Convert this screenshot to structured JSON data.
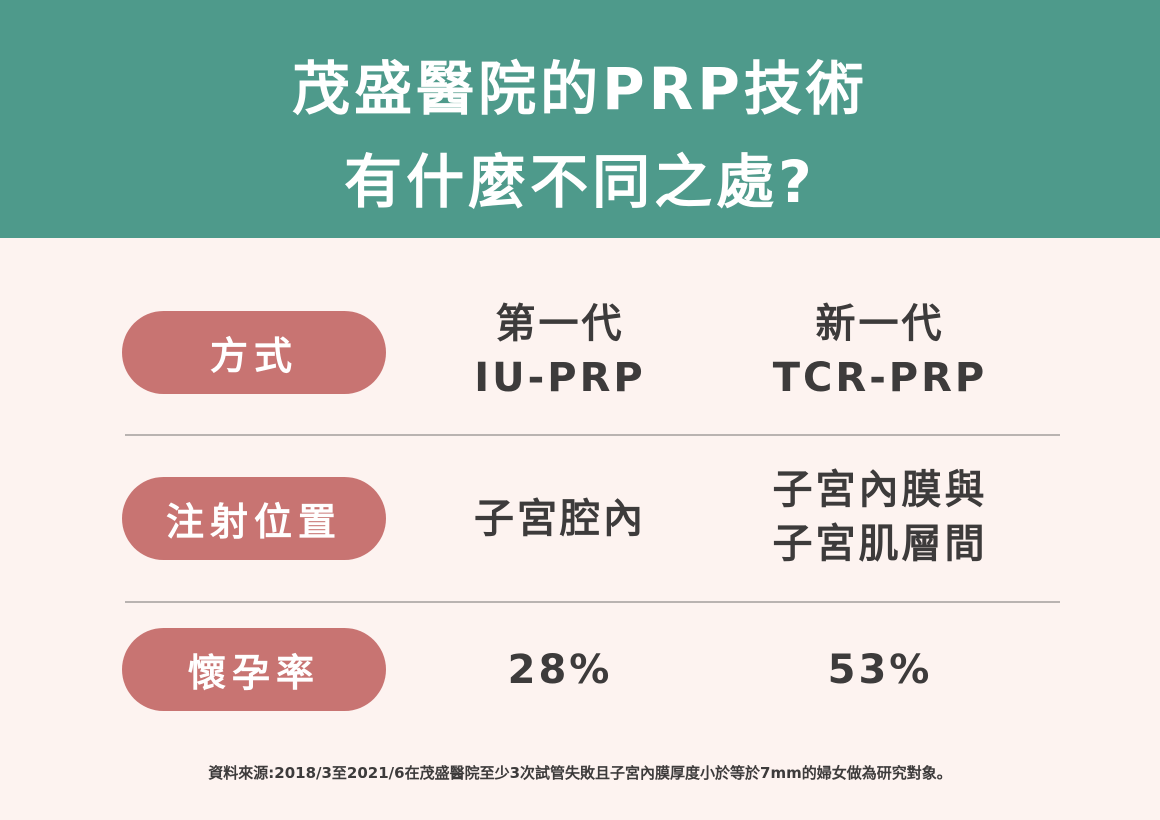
{
  "header": {
    "title_line1": "茂盛醫院的PRP技術",
    "title_line2": "有什麼不同之處?"
  },
  "rows": [
    {
      "label": "方式",
      "col1": [
        "第一代",
        "IU-PRP"
      ],
      "col2": [
        "新一代",
        "TCR-PRP"
      ]
    },
    {
      "label": "注射位置",
      "col1": [
        "子宮腔內"
      ],
      "col2": [
        "子宮內膜與",
        "子宮肌層間"
      ]
    },
    {
      "label": "懷孕率",
      "col1": [
        "28%"
      ],
      "col2": [
        "53%"
      ]
    }
  ],
  "footnote": "資料來源:2018/3至2021/6在茂盛醫院至少3次試管失敗且子宮內膜厚度小於等於7mm的婦女做為研究對象。",
  "colors": {
    "header": "#4e9a8b",
    "background": "#fdf3f0",
    "label_pill": "#c87472",
    "text": "#3d3b3b"
  }
}
